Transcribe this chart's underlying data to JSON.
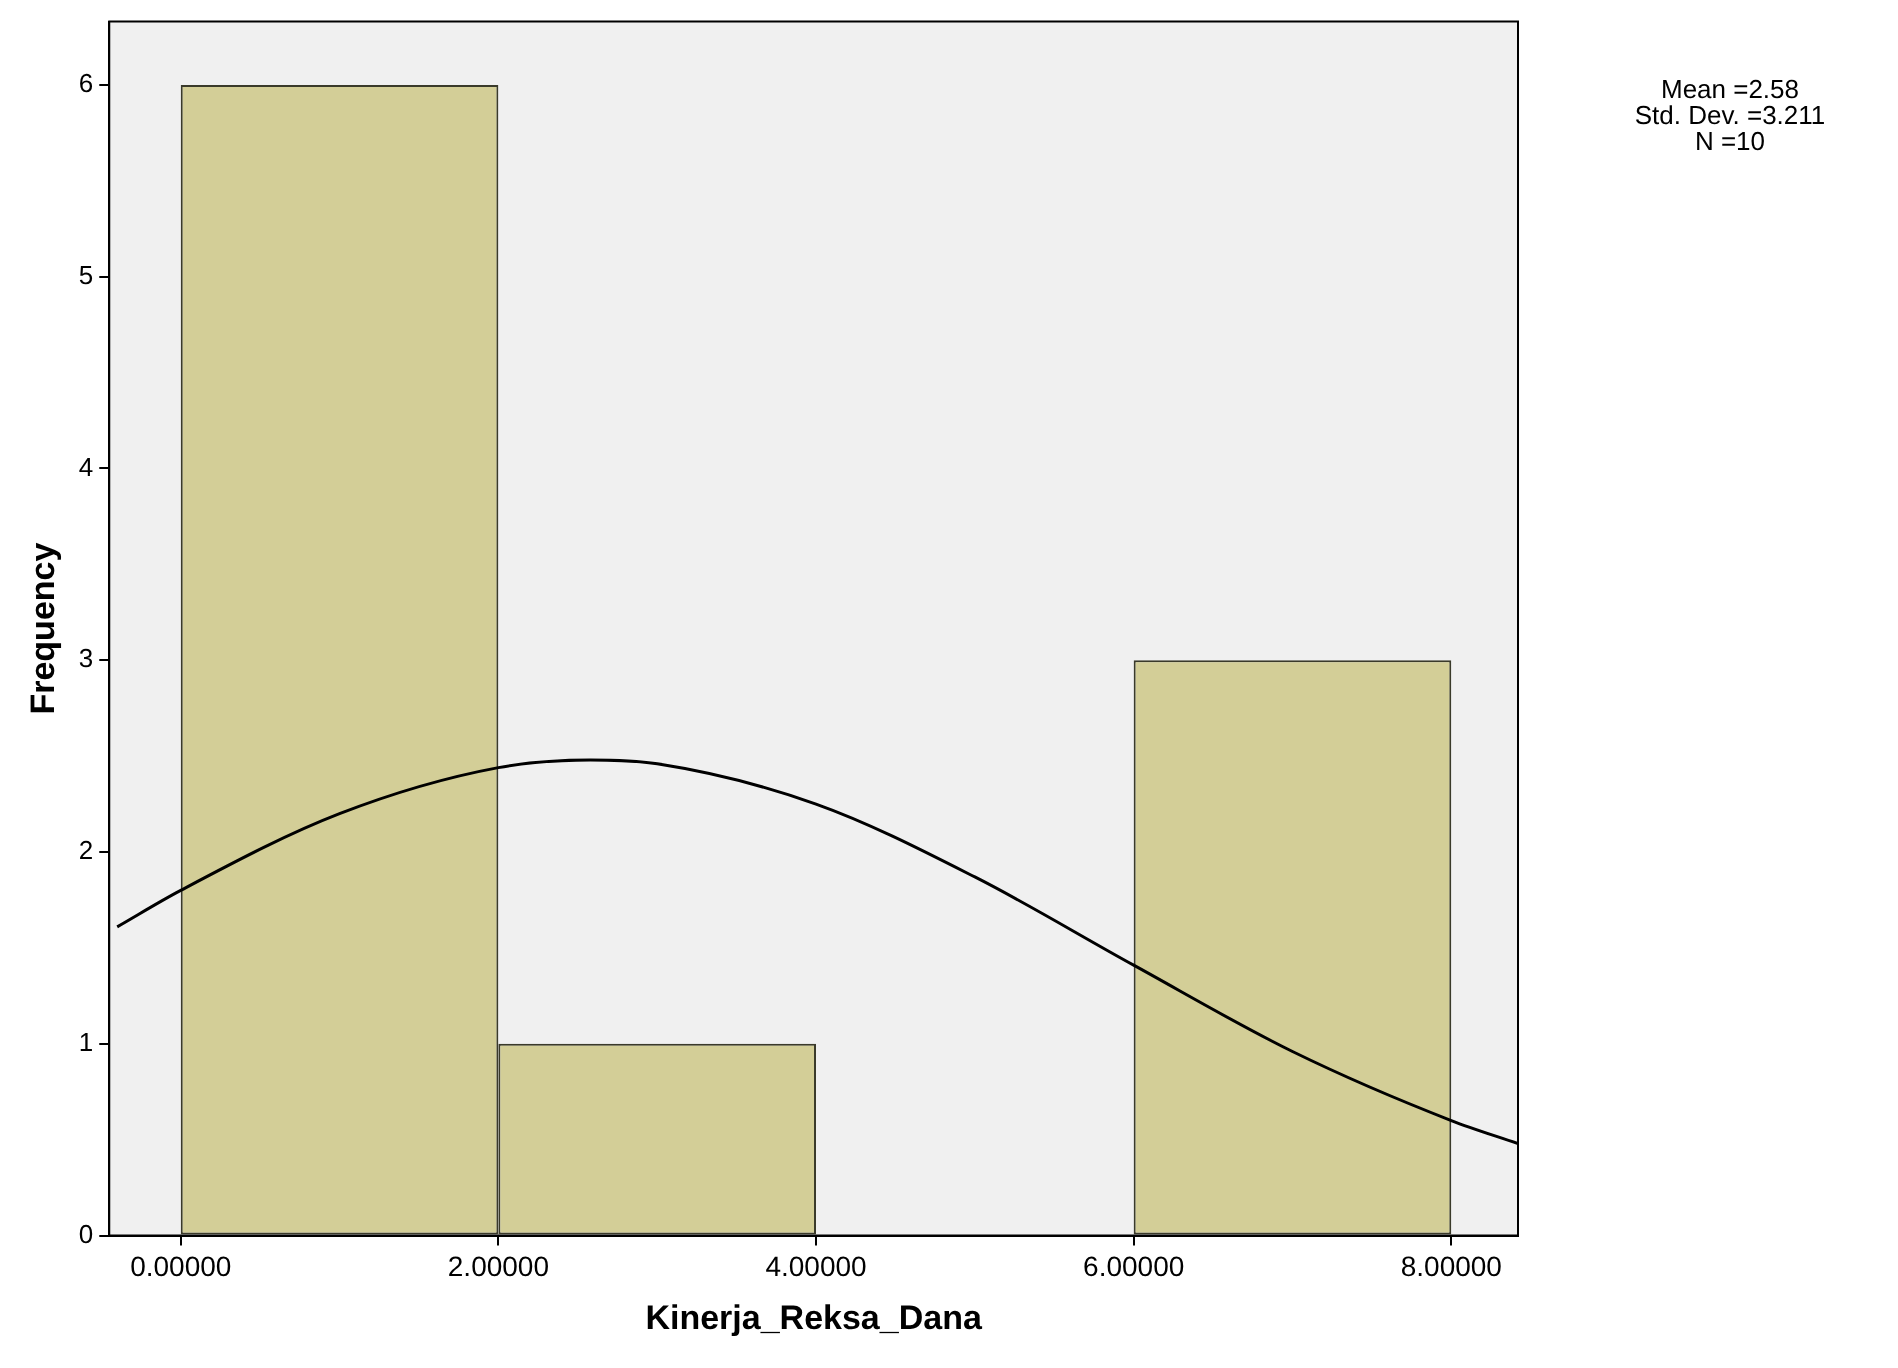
{
  "chart_data": {
    "type": "histogram",
    "xlabel": "Kinerja_Reksa_Dana",
    "ylabel": "Frequency",
    "bins": [
      0,
      2,
      4,
      6,
      8
    ],
    "values": [
      6,
      1,
      0,
      3
    ],
    "color": "#d3ce97",
    "series": [
      {
        "type": "line",
        "color": "#000000",
        "x": [
          -0.4,
          0,
          1,
          2,
          2.58,
          3,
          4,
          5,
          6,
          7,
          8,
          8.42
        ],
        "values": [
          1.61,
          1.8,
          2.2,
          2.44,
          2.48,
          2.46,
          2.25,
          1.87,
          1.41,
          0.96,
          0.6,
          0.48
        ]
      }
    ],
    "xlim": [
      -0.45,
      8.42
    ],
    "xticks": [
      {
        "value": 0,
        "label": "0.00000"
      },
      {
        "value": 2,
        "label": "2.00000"
      },
      {
        "value": 4,
        "label": "4.00000"
      },
      {
        "value": 6,
        "label": "6.00000"
      },
      {
        "value": 8,
        "label": "8.00000"
      }
    ],
    "ylim": [
      0,
      6.33
    ],
    "yticks": [
      0,
      1,
      2,
      3,
      4,
      5,
      6
    ],
    "grid": false,
    "legend": false,
    "marker": "none",
    "line_style": "solid",
    "annotations": [
      "Mean =2.58",
      "Std. Dev. =3.211",
      "N =10"
    ]
  }
}
